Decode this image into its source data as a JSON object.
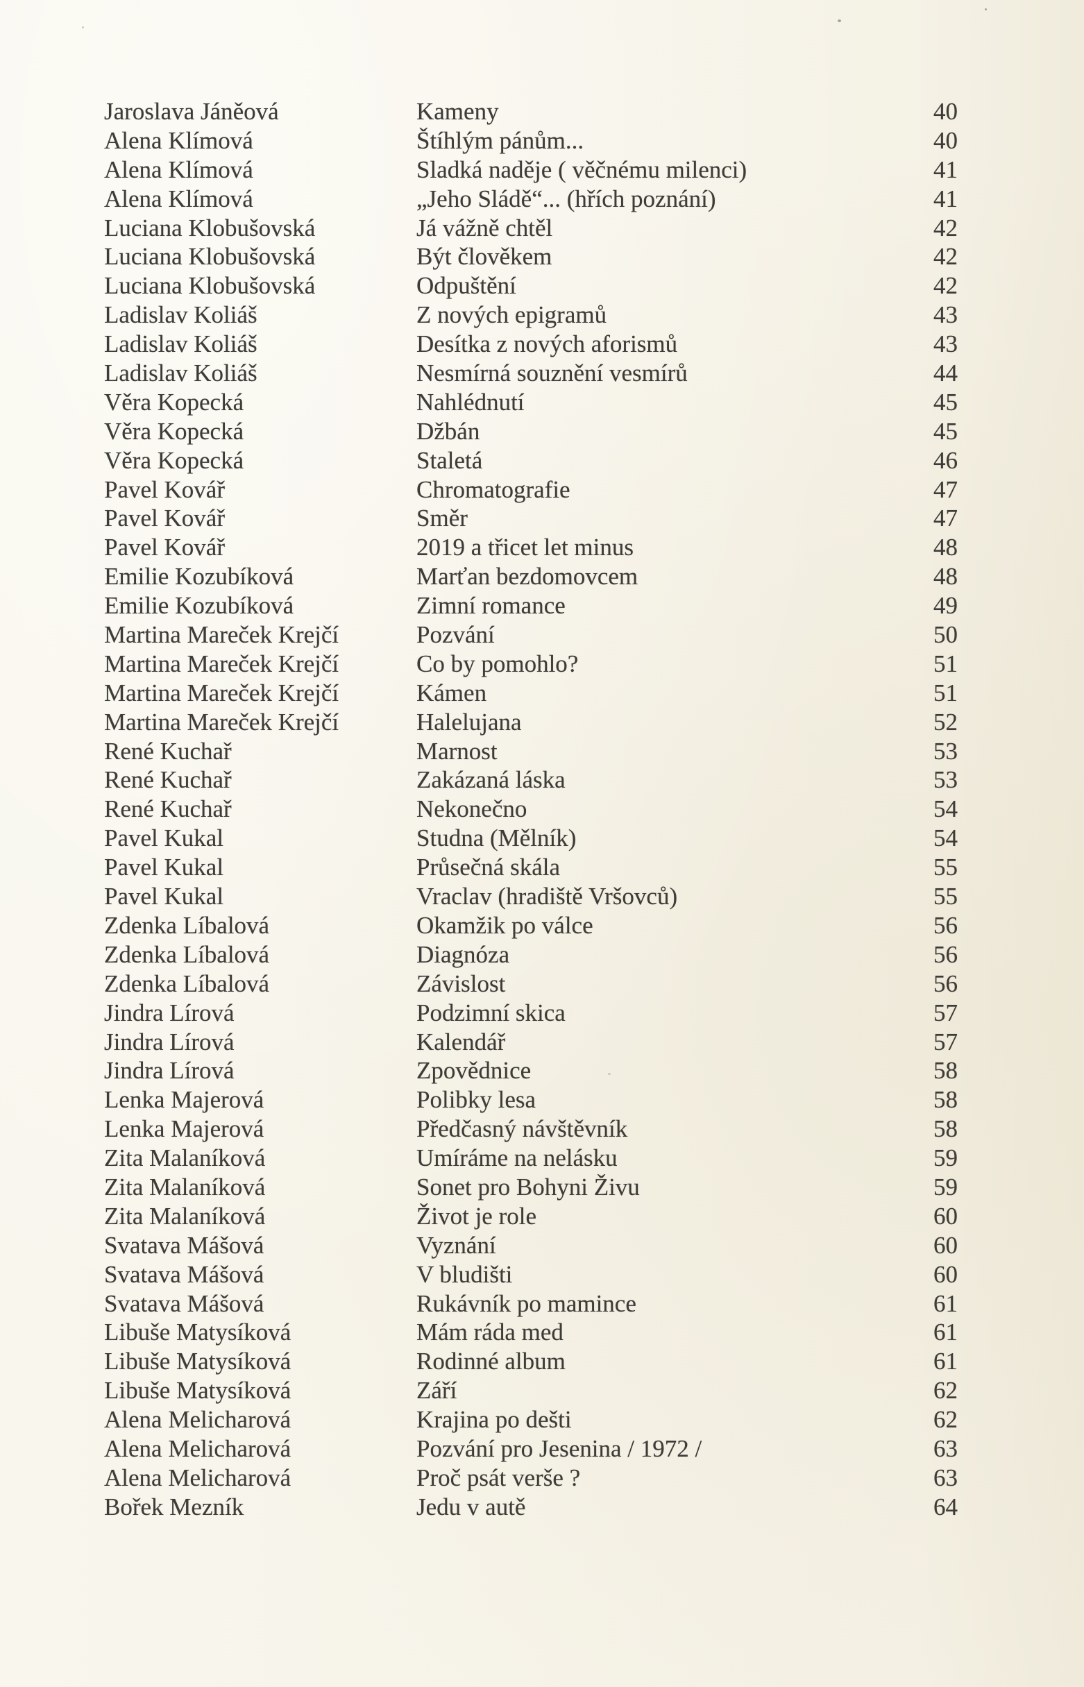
{
  "page": {
    "kind": "scanned book table-of-contents page",
    "language": "cs"
  },
  "colors": {
    "paper": "#f6f3e9",
    "ink": "#3e3c38"
  },
  "toc": {
    "rows": [
      {
        "author": "Jaroslava Jáněová",
        "title": "Kameny",
        "page": "40"
      },
      {
        "author": "Alena Klímová",
        "title": "Štíhlým pánům...",
        "page": "40"
      },
      {
        "author": "Alena Klímová",
        "title": "Sladká naděje ( věčnému milenci)",
        "page": "41"
      },
      {
        "author": "Alena Klímová",
        "title": "„Jeho Sládě“... (hřích poznání)",
        "page": "41"
      },
      {
        "author": "Luciana Klobušovská",
        "title": "Já vážně chtěl",
        "page": "42"
      },
      {
        "author": "Luciana Klobušovská",
        "title": "Být člověkem",
        "page": "42"
      },
      {
        "author": "Luciana Klobušovská",
        "title": "Odpuštění",
        "page": "42"
      },
      {
        "author": "Ladislav Koliáš",
        "title": "Z nových epigramů",
        "page": "43"
      },
      {
        "author": "Ladislav Koliáš",
        "title": "Desítka z nových aforismů",
        "page": "43"
      },
      {
        "author": "Ladislav Koliáš",
        "title": "Nesmírná souznění vesmírů",
        "page": "44"
      },
      {
        "author": "Věra Kopecká",
        "title": "Nahlédnutí",
        "page": "45"
      },
      {
        "author": "Věra Kopecká",
        "title": "Džbán",
        "page": "45"
      },
      {
        "author": "Věra Kopecká",
        "title": "Staletá",
        "page": "46"
      },
      {
        "author": "Pavel Kovář",
        "title": "Chromatografie",
        "page": "47"
      },
      {
        "author": "Pavel Kovář",
        "title": "Směr",
        "page": "47"
      },
      {
        "author": "Pavel Kovář",
        "title": "2019 a třicet let minus",
        "page": "48"
      },
      {
        "author": "Emilie Kozubíková",
        "title": "Marťan bezdomovcem",
        "page": "48"
      },
      {
        "author": "Emilie Kozubíková",
        "title": "Zimní romance",
        "page": "49"
      },
      {
        "author": "Martina Mareček Krejčí",
        "title": "Pozvání",
        "page": "50"
      },
      {
        "author": "Martina Mareček Krejčí",
        "title": "Co by pomohlo?",
        "page": "51"
      },
      {
        "author": "Martina Mareček Krejčí",
        "title": "Kámen",
        "page": "51"
      },
      {
        "author": "Martina Mareček Krejčí",
        "title": "Halelujana",
        "page": "52"
      },
      {
        "author": "René Kuchař",
        "title": "Marnost",
        "page": "53"
      },
      {
        "author": "René Kuchař",
        "title": "Zakázaná láska",
        "page": "53"
      },
      {
        "author": "René Kuchař",
        "title": "Nekonečno",
        "page": "54"
      },
      {
        "author": "Pavel Kukal",
        "title": "Studna (Mělník)",
        "page": "54"
      },
      {
        "author": "Pavel Kukal",
        "title": "Průsečná skála",
        "page": "55"
      },
      {
        "author": "Pavel Kukal",
        "title": "Vraclav (hradiště Vršovců)",
        "page": "55"
      },
      {
        "author": "Zdenka Líbalová",
        "title": "Okamžik po válce",
        "page": "56"
      },
      {
        "author": "Zdenka Líbalová",
        "title": "Diagnóza",
        "page": "56"
      },
      {
        "author": "Zdenka Líbalová",
        "title": "Závislost",
        "page": "56"
      },
      {
        "author": "Jindra Lírová",
        "title": "Podzimní skica",
        "page": "57"
      },
      {
        "author": "Jindra Lírová",
        "title": "Kalendář",
        "page": "57"
      },
      {
        "author": "Jindra Lírová",
        "title": "Zpovědnice",
        "page": "58"
      },
      {
        "author": "Lenka Majerová",
        "title": "Polibky lesa",
        "page": "58"
      },
      {
        "author": "Lenka Majerová",
        "title": "Předčasný návštěvník",
        "page": "58"
      },
      {
        "author": "Zita Malaníková",
        "title": "Umíráme na nelásku",
        "page": "59"
      },
      {
        "author": "Zita Malaníková",
        "title": "Sonet pro Bohyni Živu",
        "page": "59"
      },
      {
        "author": "Zita Malaníková",
        "title": "Život je role",
        "page": "60"
      },
      {
        "author": "Svatava Mášová",
        "title": "Vyznání",
        "page": "60"
      },
      {
        "author": "Svatava Mášová",
        "title": "V bludišti",
        "page": "60"
      },
      {
        "author": "Svatava Mášová",
        "title": "Rukávník po mamince",
        "page": "61"
      },
      {
        "author": "Libuše Matysíková",
        "title": "Mám ráda med",
        "page": "61"
      },
      {
        "author": "Libuše Matysíková",
        "title": "Rodinné album",
        "page": "61"
      },
      {
        "author": "Libuše Matysíková",
        "title": "Září",
        "page": "62"
      },
      {
        "author": "Alena Melicharová",
        "title": "Krajina po dešti",
        "page": "62"
      },
      {
        "author": "Alena Melicharová",
        "title": "Pozvání pro Jesenina  / 1972 /",
        "page": "63"
      },
      {
        "author": "Alena Melicharová",
        "title": "Proč psát verše ?",
        "page": "63"
      },
      {
        "author": "Bořek Mezník",
        "title": "Jedu v autě",
        "page": "64"
      }
    ]
  }
}
